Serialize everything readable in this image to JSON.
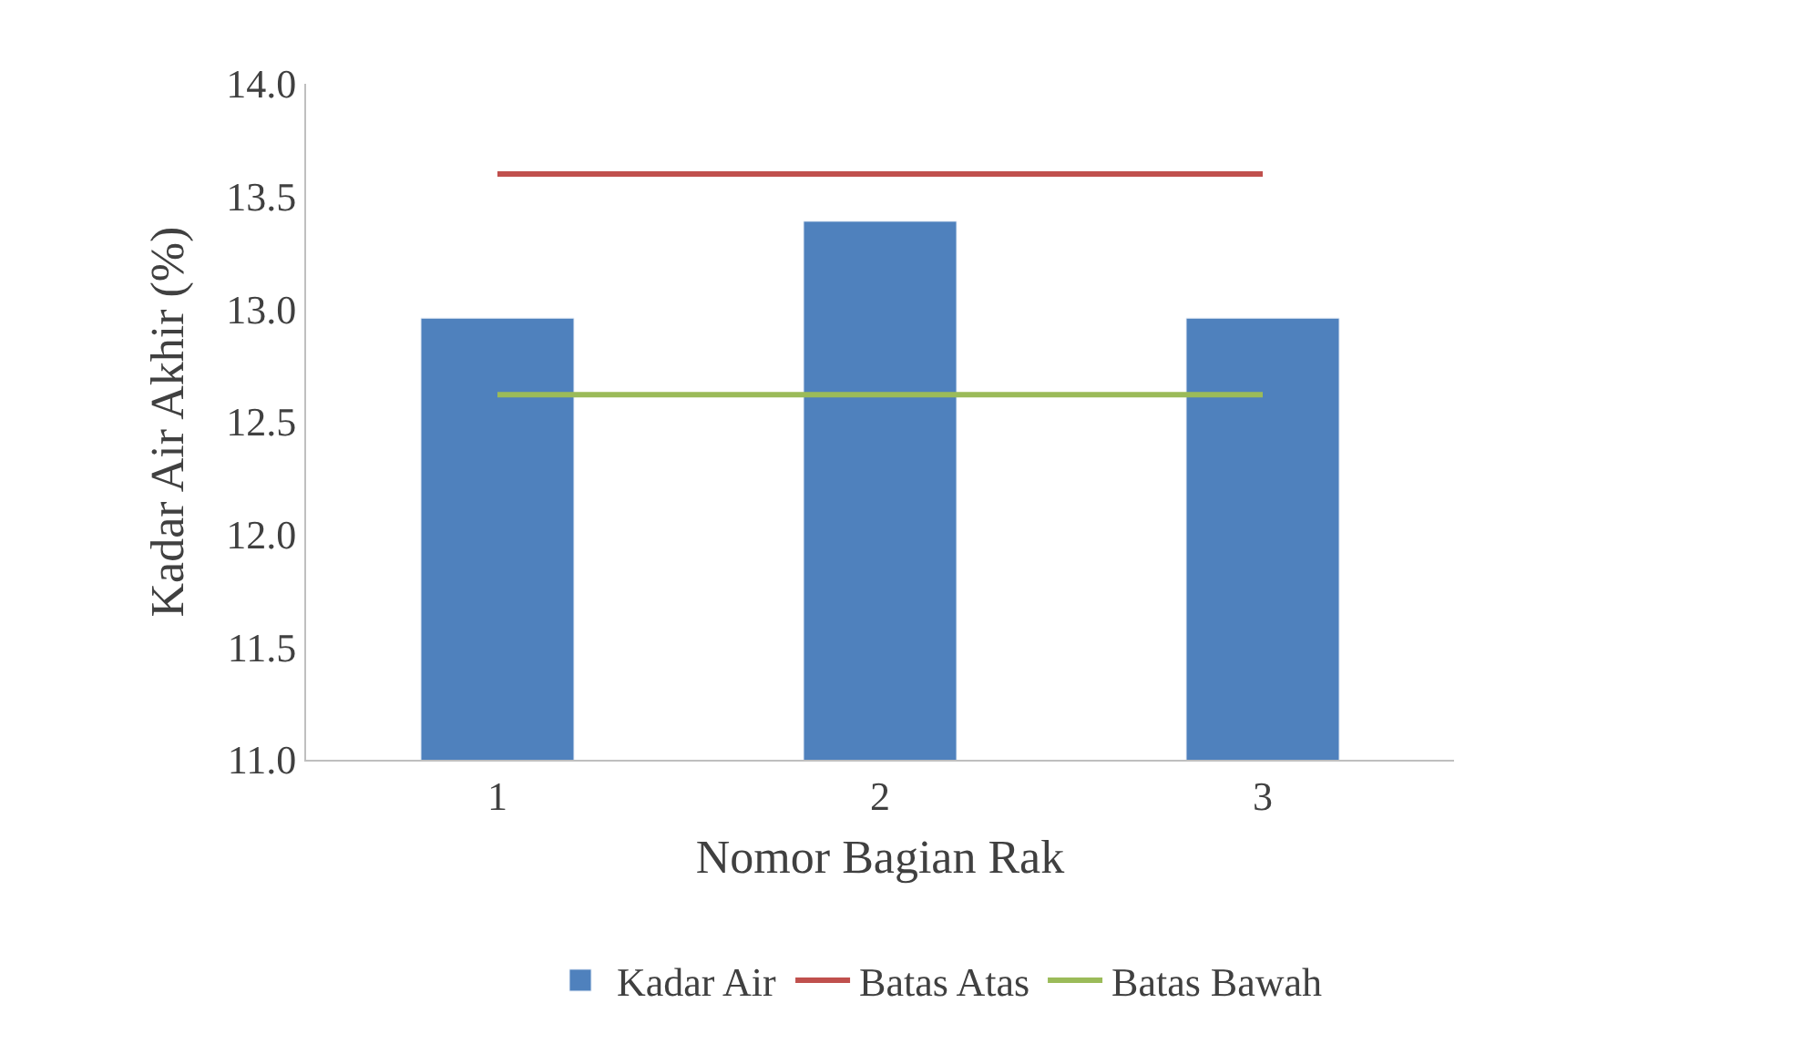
{
  "chart_data": {
    "type": "bar",
    "xlabel": "Nomor Bagian Rak",
    "ylabel": "Kadar Air Akhir (%)",
    "categories": [
      "1",
      "2",
      "3"
    ],
    "series": [
      {
        "name": "Kadar Air",
        "color": "#4f81bd",
        "values": [
          12.96,
          13.39,
          12.96
        ]
      },
      {
        "name": "Batas Atas",
        "type": "line",
        "color": "#c0504d",
        "values": [
          13.6,
          13.6,
          13.6
        ]
      },
      {
        "name": "Batas Bawah",
        "type": "line",
        "color": "#9bbb59",
        "values": [
          12.62,
          12.62,
          12.62
        ]
      }
    ],
    "ylim": [
      11.0,
      14.0
    ],
    "yticks": [
      {
        "value": 11,
        "label": "11.0"
      },
      {
        "value": 11.5,
        "label": "11.5"
      },
      {
        "value": 12,
        "label": "12.0"
      },
      {
        "value": 12.5,
        "label": "12.5"
      },
      {
        "value": 13,
        "label": "13.0"
      },
      {
        "value": 13.5,
        "label": "13.5"
      },
      {
        "value": 14,
        "label": "14.0"
      }
    ],
    "legend": "bottom",
    "marker": "none"
  }
}
